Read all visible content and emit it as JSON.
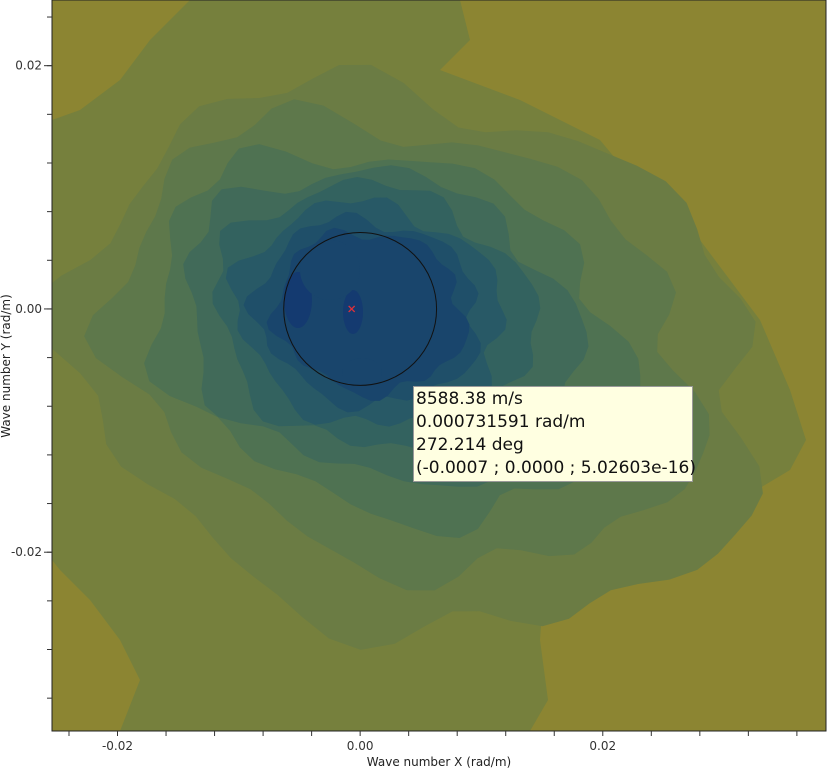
{
  "chart_data": {
    "type": "heatmap",
    "subtype": "filled-contour",
    "xlabel": "Wave number X (rad/m)",
    "ylabel": "Wave number Y (rad/m)",
    "xlim": [
      -0.0254,
      0.0384
    ],
    "ylim": [
      -0.0347,
      0.0254
    ],
    "x_ticks": [
      -0.02,
      0.0,
      0.02
    ],
    "x_tick_labels": [
      "-0.02",
      "0.00",
      "0.02"
    ],
    "y_ticks": [
      0.02,
      0.0,
      -0.02
    ],
    "y_tick_labels": [
      "0.02",
      "0.00",
      "-0.02"
    ],
    "minor_tick_step": 0.004,
    "grid": false,
    "peak_marker": {
      "x": -0.0007,
      "y": 0.0,
      "color": "#e0303a"
    },
    "circle": {
      "center": [
        0.0,
        0.0
      ],
      "radius": 0.0063
    },
    "colors": [
      "#8c8532",
      "#76803d",
      "#6b7c44",
      "#5e784b",
      "#4f7252",
      "#416a59",
      "#33625f",
      "#285966",
      "#1f4f69",
      "#19456c",
      "#143a70"
    ]
  },
  "tooltip": {
    "lines": [
      "8588.38 m/s",
      "0.000731591 rad/m",
      "272.214 deg",
      "(-0.0007 ; 0.0000 ; 5.02603e-16)"
    ]
  }
}
